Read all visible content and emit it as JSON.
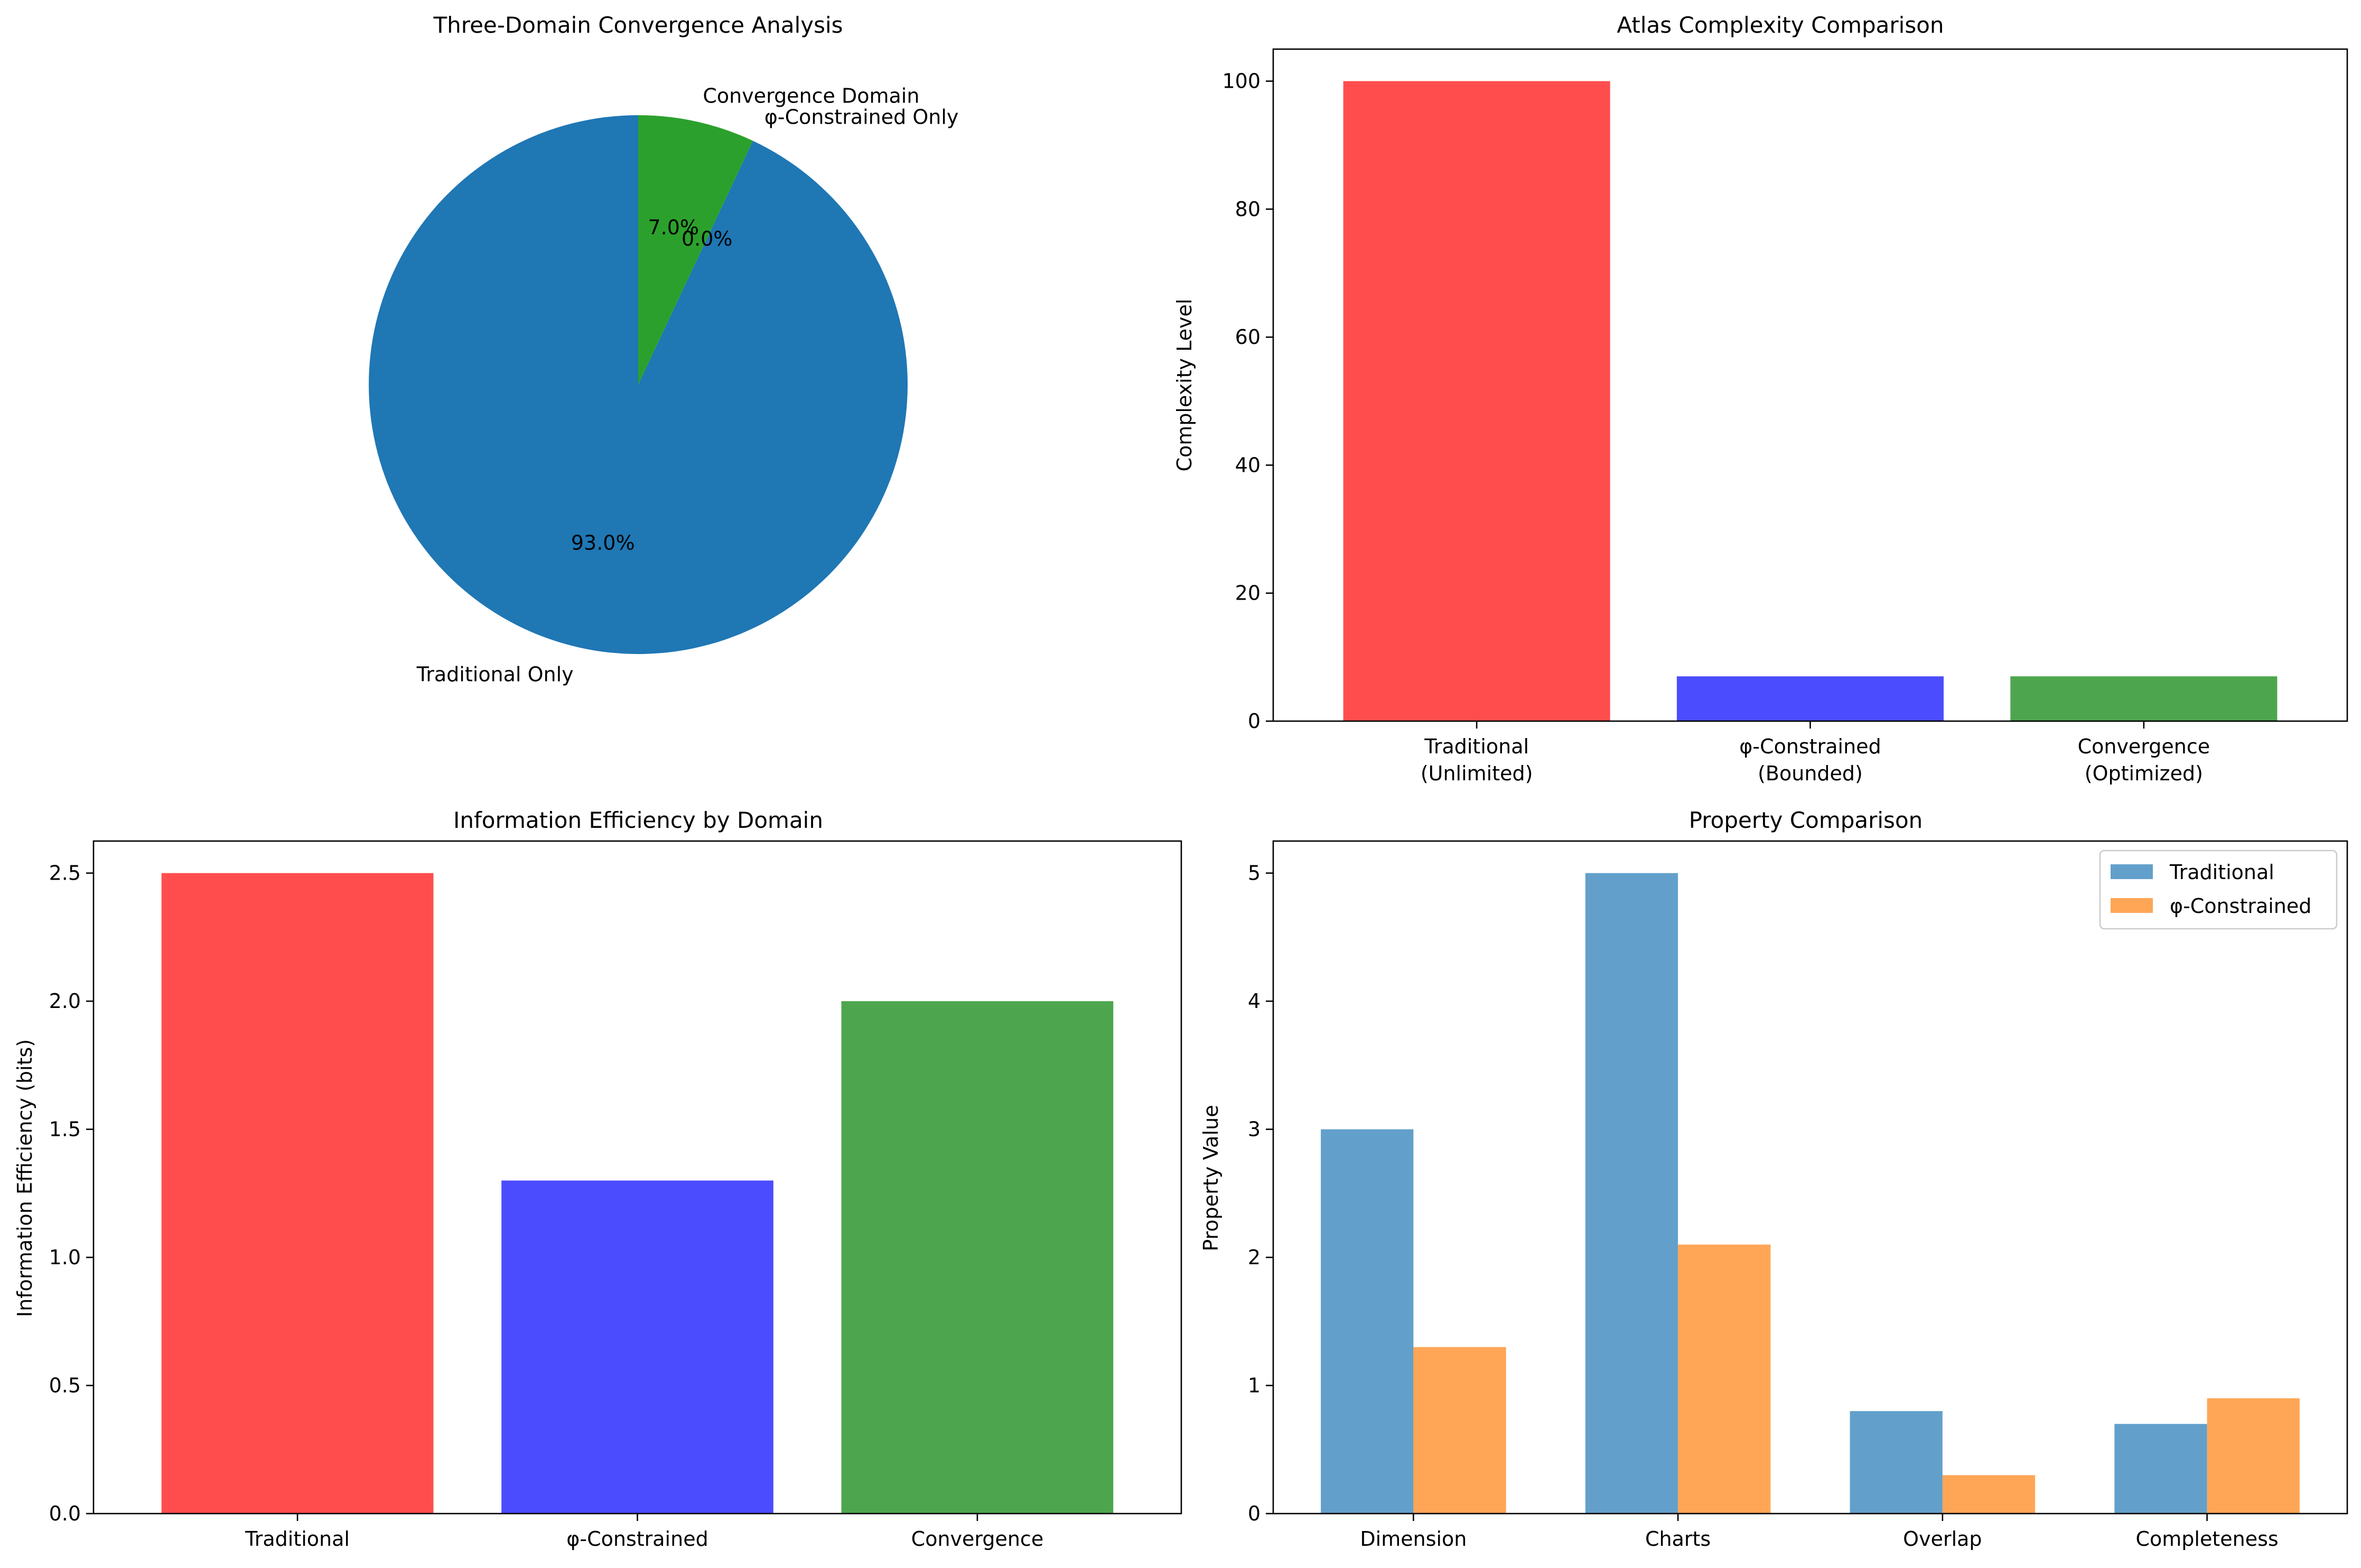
{
  "chart_data": [
    {
      "type": "pie",
      "title": "Three-Domain Convergence Analysis",
      "labels": [
        "Traditional Only",
        "φ-Constrained Only",
        "Convergence Domain"
      ],
      "values": [
        93.0,
        0.0,
        7.0
      ],
      "pct_labels": [
        "93.0%",
        "0.0%",
        "7.0%"
      ],
      "colors": [
        "#1f77b4",
        "#ff7f0e",
        "#2ca02c"
      ],
      "start_angle": 90,
      "counterclockwise": true
    },
    {
      "type": "bar",
      "title": "Atlas Complexity Comparison",
      "ylabel": "Complexity Level",
      "xlabel": "",
      "categories": [
        [
          "Traditional",
          "(Unlimited)"
        ],
        [
          "φ-Constrained",
          "(Bounded)"
        ],
        [
          "Convergence",
          "(Optimized)"
        ]
      ],
      "values": [
        100,
        7,
        7
      ],
      "colors": [
        "#ff4d4d",
        "#4c4cff",
        "#4da64d"
      ],
      "ylim": [
        0,
        105
      ],
      "yticks": [
        0,
        20,
        40,
        60,
        80,
        100
      ],
      "ytick_labels": [
        "0",
        "20",
        "40",
        "60",
        "80",
        "100"
      ]
    },
    {
      "type": "bar",
      "title": "Information Efficiency by Domain",
      "ylabel": "Information Efficiency (bits)",
      "xlabel": "",
      "categories": [
        "Traditional",
        "φ-Constrained",
        "Convergence"
      ],
      "values": [
        2.5,
        1.3,
        2.0
      ],
      "colors": [
        "#ff4d4d",
        "#4c4cff",
        "#4da64d"
      ],
      "ylim": [
        0,
        2.625
      ],
      "yticks": [
        0,
        0.5,
        1.0,
        1.5,
        2.0,
        2.5
      ],
      "ytick_labels": [
        "0.0",
        "0.5",
        "1.0",
        "1.5",
        "2.0",
        "2.5"
      ]
    },
    {
      "type": "bar",
      "title": "Property Comparison",
      "ylabel": "Property Value",
      "xlabel": "",
      "categories": [
        "Dimension",
        "Charts",
        "Overlap",
        "Completeness"
      ],
      "series": [
        {
          "name": "Traditional",
          "values": [
            3,
            5,
            0.8,
            0.7
          ],
          "color": "#62a0cb"
        },
        {
          "name": "φ-Constrained",
          "values": [
            1.3,
            2.1,
            0.3,
            0.9
          ],
          "color": "#ffa556"
        }
      ],
      "ylim": [
        0,
        5.25
      ],
      "yticks": [
        0,
        1,
        2,
        3,
        4,
        5
      ],
      "ytick_labels": [
        "0",
        "1",
        "2",
        "3",
        "4",
        "5"
      ],
      "legend": "top-right"
    }
  ]
}
